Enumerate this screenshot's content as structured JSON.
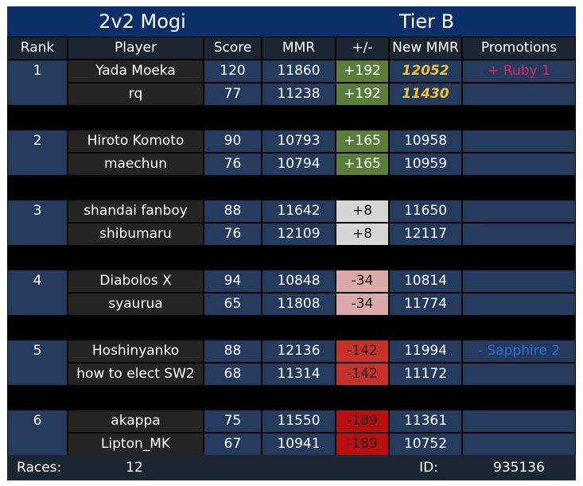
{
  "title_left": "2v2 Mogi",
  "title_right": "Tier B",
  "headers": {
    "rank": "Rank",
    "player": "Player",
    "score": "Score",
    "mmr": "MMR",
    "delta": "+/-",
    "new_mmr": "New MMR",
    "promotions": "Promotions"
  },
  "teams": [
    {
      "rank": "1",
      "players": [
        {
          "name": "Yada Moeka",
          "score": "120",
          "mmr": "11860",
          "delta": "+192",
          "new_mmr": "12052",
          "promotion": "+ Ruby 1"
        },
        {
          "name": "rq",
          "score": "77",
          "mmr": "11238",
          "delta": "+192",
          "new_mmr": "11430",
          "promotion": ""
        }
      ]
    },
    {
      "rank": "2",
      "players": [
        {
          "name": "Hiroto Komoto",
          "score": "90",
          "mmr": "10793",
          "delta": "+165",
          "new_mmr": "10958",
          "promotion": ""
        },
        {
          "name": "maechun",
          "score": "76",
          "mmr": "10794",
          "delta": "+165",
          "new_mmr": "10959",
          "promotion": ""
        }
      ]
    },
    {
      "rank": "3",
      "players": [
        {
          "name": "shandai fanboy",
          "score": "88",
          "mmr": "11642",
          "delta": "+8",
          "new_mmr": "11650",
          "promotion": ""
        },
        {
          "name": "shibumaru",
          "score": "76",
          "mmr": "12109",
          "delta": "+8",
          "new_mmr": "12117",
          "promotion": ""
        }
      ]
    },
    {
      "rank": "4",
      "players": [
        {
          "name": "Diabolos X",
          "score": "94",
          "mmr": "10848",
          "delta": "-34",
          "new_mmr": "10814",
          "promotion": ""
        },
        {
          "name": "syaurua",
          "score": "65",
          "mmr": "11808",
          "delta": "-34",
          "new_mmr": "11774",
          "promotion": ""
        }
      ]
    },
    {
      "rank": "5",
      "players": [
        {
          "name": "Hoshinyanko",
          "score": "88",
          "mmr": "12136",
          "delta": "-142",
          "new_mmr": "11994",
          "promotion": "- Sapphire 2"
        },
        {
          "name": "how to elect SW2",
          "score": "68",
          "mmr": "11314",
          "delta": "-142",
          "new_mmr": "11172",
          "promotion": ""
        }
      ]
    },
    {
      "rank": "6",
      "players": [
        {
          "name": "akappa",
          "score": "75",
          "mmr": "11550",
          "delta": "-189",
          "new_mmr": "11361",
          "promotion": ""
        },
        {
          "name": "Lipton_MK",
          "score": "67",
          "mmr": "10941",
          "delta": "-189",
          "new_mmr": "10752",
          "promotion": ""
        }
      ]
    }
  ],
  "footer": {
    "races_label": "Races:",
    "races_value": "12",
    "id_label": "ID:",
    "id_value": "935136"
  },
  "colors": {
    "title_bar": "#0c2f6a",
    "header_bg": "#1c2632",
    "row_blue": "#243b5e",
    "player_bg": "#242424",
    "gold_text": "#f2c032",
    "ruby_text": "#e0245e",
    "sapphire_text": "#2e6bd6",
    "delta_192": "#5a7d3c",
    "delta_165": "#5a7d3c",
    "delta_8": "#d6d6d6",
    "delta_m34": "#d9a8a8",
    "delta_m142": "#c8302a",
    "delta_m189": "#b80f0f"
  }
}
